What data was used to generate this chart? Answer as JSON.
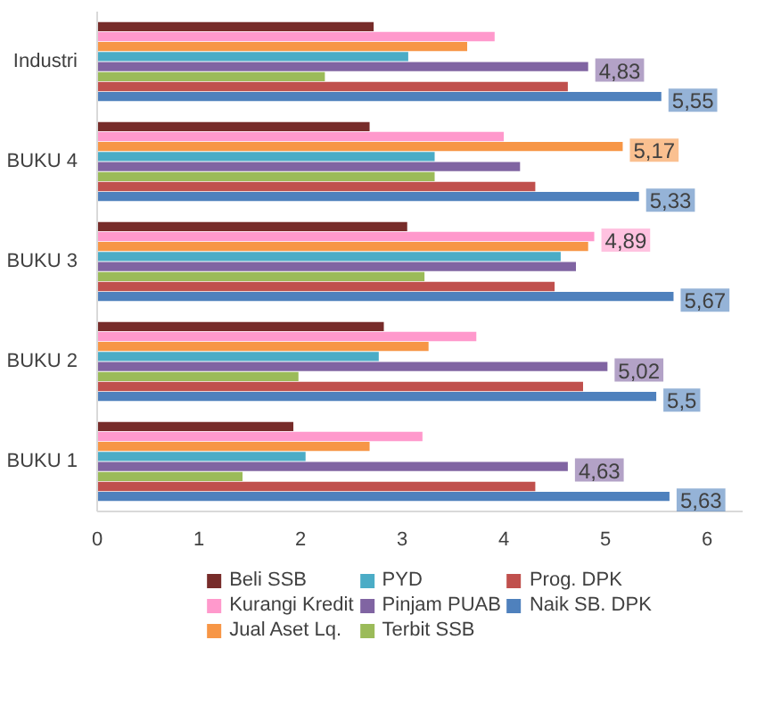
{
  "chart_data": {
    "type": "bar",
    "orientation": "horizontal",
    "categories": [
      "Industri",
      "BUKU 4",
      "BUKU 3",
      "BUKU 2",
      "BUKU 1"
    ],
    "series": [
      {
        "name": "Beli SSB",
        "color": "#772c2a",
        "values": [
          2.72,
          2.68,
          3.05,
          2.82,
          1.93
        ]
      },
      {
        "name": "Kurangi Kredit",
        "color": "#ff99cc",
        "values": [
          3.91,
          4.0,
          4.89,
          3.73,
          3.2
        ],
        "value_labels": [
          null,
          null,
          "4,89",
          null,
          null
        ]
      },
      {
        "name": "Jual Aset Lq.",
        "color": "#f79646",
        "values": [
          3.64,
          5.17,
          4.83,
          3.26,
          2.68
        ],
        "value_labels": [
          null,
          "5,17",
          null,
          null,
          null
        ]
      },
      {
        "name": "PYD",
        "color": "#4bacc6",
        "values": [
          3.06,
          3.32,
          4.56,
          2.77,
          2.05
        ]
      },
      {
        "name": "Pinjam PUAB",
        "color": "#8064a2",
        "values": [
          4.83,
          4.16,
          4.71,
          5.02,
          4.63
        ],
        "value_labels": [
          "4,83",
          null,
          null,
          "5,02",
          "4,63"
        ]
      },
      {
        "name": "Terbit SSB",
        "color": "#9bbb59",
        "values": [
          2.24,
          3.32,
          3.22,
          1.98,
          1.43
        ]
      },
      {
        "name": "Prog. DPK",
        "color": "#c0504d",
        "values": [
          4.63,
          4.31,
          4.5,
          4.78,
          4.31
        ]
      },
      {
        "name": "Naik SB. DPK",
        "color": "#4f81bd",
        "values": [
          5.55,
          5.33,
          5.67,
          5.5,
          5.63
        ],
        "value_labels": [
          "5,55",
          "5,33",
          "5,67",
          "5,5",
          "5,63"
        ]
      }
    ],
    "xlim": [
      0,
      6.35
    ],
    "xticks": [
      0,
      1,
      2,
      3,
      4,
      5,
      6
    ],
    "grid": false,
    "legend": "bottom"
  }
}
